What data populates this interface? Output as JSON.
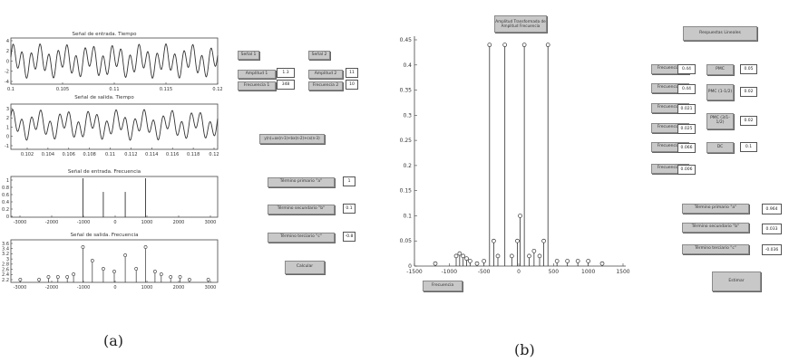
{
  "captions": {
    "a": "(a)",
    "b": "(b)"
  },
  "panel_a": {
    "titles": {
      "in_time": "Señal de entrada. Tiempo",
      "out_time": "Señal de salida. Tiempo",
      "in_freq": "Señal de entrada. Frecuencia",
      "out_freq": "Señal de salida. Frecuencia"
    },
    "ticks": {
      "p1_x": [
        "0.1",
        "0.105",
        "0.11",
        "0.115",
        "0.12"
      ],
      "p1_y": [
        "4",
        "2",
        "0",
        "-2",
        "-4"
      ],
      "p2_x": [
        "0.102",
        "0.104",
        "0.106",
        "0.108",
        "0.11",
        "0.112",
        "0.114",
        "0.116",
        "0.118",
        "0.12"
      ],
      "p2_y": [
        "3",
        "2",
        "1",
        "0",
        "-1"
      ],
      "p3_x": [
        "-3000",
        "-2000",
        "-1000",
        "0",
        "1000",
        "2000",
        "3000"
      ],
      "p3_y": [
        "1",
        "0.8",
        "0.6",
        "0.4",
        "0.2",
        "0"
      ],
      "p4_x": [
        "-3000",
        "-2000",
        "-1000",
        "0",
        "1000",
        "2000",
        "3000"
      ],
      "p4_y": [
        "3.6",
        "3.4",
        "3.2",
        "3",
        "2.8",
        "2.6",
        "2.4",
        "2.2"
      ]
    },
    "controls": {
      "senal1": "Señal 1",
      "senal2": "Señal 2",
      "amplitud1_label": "Amplitud 1",
      "amplitud1_value": "1.3",
      "frecuencia1_label": "Frecuencia 1",
      "frecuencia1_value": "348",
      "amplitud2_label": "Amplitud 2",
      "amplitud2_value": "11",
      "frecuencia2_label": "Frecuencia 2",
      "frecuencia2_value": "10",
      "ecuacion": "y(n)=ax(n-1)+bx(n-2)+cx(n-3)",
      "term_a_label": "Término primario \"a\"",
      "term_a_value": "1",
      "term_b_label": "Término secundario \"b\"",
      "term_b_value": "0.1",
      "term_c_label": "Término terciario \"c\"",
      "term_c_value": "-0.8",
      "calcular": "Calcular"
    }
  },
  "panel_b": {
    "plot_title": "Amplitud Transformada de\nAmplitud Frecuencia",
    "xlabel_button": "Frecuencia",
    "yticks": [
      "0.45",
      "0.4",
      "0.35",
      "0.3",
      "0.25",
      "0.2",
      "0.15",
      "0.1",
      "0.05",
      "0"
    ],
    "xticks": [
      "-1500",
      "-1000",
      "-500",
      "0",
      "500",
      "1000",
      "1500"
    ],
    "respuestas": "Respuestas Lineales",
    "freq_labels": [
      "Frecuencia 1",
      "Frecuencia 2",
      "Frecuencia 3",
      "Frecuencia 4",
      "Frecuencia 5",
      "Frecuencia 6"
    ],
    "freq_values": [
      "0.44",
      "0.44",
      "0.021",
      "0.025",
      "0.066",
      "0.006"
    ],
    "side_labels": [
      "PMC",
      "PMC (1-1/2)",
      "PMC (3/1-1/2)",
      "DC"
    ],
    "side_values": [
      "0.05",
      "0.02",
      "0.02",
      "0.1"
    ],
    "coef_labels": [
      "Término primario \"a\"",
      "Término secundario \"b\"",
      "Término terciario \"c\""
    ],
    "coef_values": [
      "0.964",
      "0.033",
      "-0.036"
    ],
    "estimar": "Estimar"
  },
  "chart_data": [
    {
      "type": "line",
      "title": "Señal de entrada. Tiempo",
      "xlim": [
        0.1,
        0.12
      ],
      "ylim": [
        -4,
        4
      ]
    },
    {
      "type": "line",
      "title": "Señal de salida. Tiempo",
      "xlim": [
        0.101,
        0.12
      ],
      "ylim": [
        -1.5,
        3.5
      ]
    },
    {
      "type": "bar",
      "title": "Señal de entrada. Frecuencia",
      "x": [
        -1000,
        -350,
        350,
        1000
      ],
      "values": [
        1,
        0.65,
        0.65,
        1
      ],
      "xlim": [
        -3300,
        3300
      ],
      "ylim": [
        0,
        1
      ]
    },
    {
      "type": "scatter",
      "title": "Señal de salida. Frecuencia",
      "x": [
        -3000,
        -2400,
        -2100,
        -1800,
        -1500,
        -1300,
        -1000,
        -700,
        -350,
        0,
        350,
        700,
        1000,
        1300,
        1500,
        1800,
        2100,
        2400,
        3000
      ],
      "values": [
        2.3,
        2.3,
        2.4,
        2.4,
        2.4,
        2.5,
        3.5,
        3.0,
        2.7,
        2.6,
        3.2,
        2.7,
        3.5,
        2.6,
        2.5,
        2.4,
        2.4,
        2.3,
        2.3
      ],
      "xlim": [
        -3300,
        3300
      ],
      "ylim": [
        2.2,
        3.7
      ]
    },
    {
      "type": "scatter",
      "title": "Amplitud Transformada de Amplitud Frecuencia",
      "x": [
        -1200,
        -900,
        -850,
        -800,
        -750,
        -700,
        -600,
        -500,
        -420,
        -360,
        -300,
        -200,
        -100,
        -20,
        20,
        80,
        150,
        220,
        300,
        360,
        420,
        550,
        700,
        850,
        1000,
        1200
      ],
      "values": [
        0.005,
        0.02,
        0.025,
        0.02,
        0.015,
        0.01,
        0.005,
        0.01,
        0.44,
        0.05,
        0.02,
        0.44,
        0.02,
        0.05,
        0.1,
        0.44,
        0.02,
        0.03,
        0.02,
        0.05,
        0.44,
        0.01,
        0.01,
        0.01,
        0.01,
        0.005
      ],
      "xlim": [
        -1500,
        1500
      ],
      "ylim": [
        0,
        0.45
      ],
      "xticks": [
        -1500,
        -1000,
        -500,
        0,
        500,
        1000,
        1500
      ],
      "yticks": [
        0,
        0.05,
        0.1,
        0.15,
        0.2,
        0.25,
        0.3,
        0.35,
        0.4,
        0.45
      ]
    }
  ]
}
